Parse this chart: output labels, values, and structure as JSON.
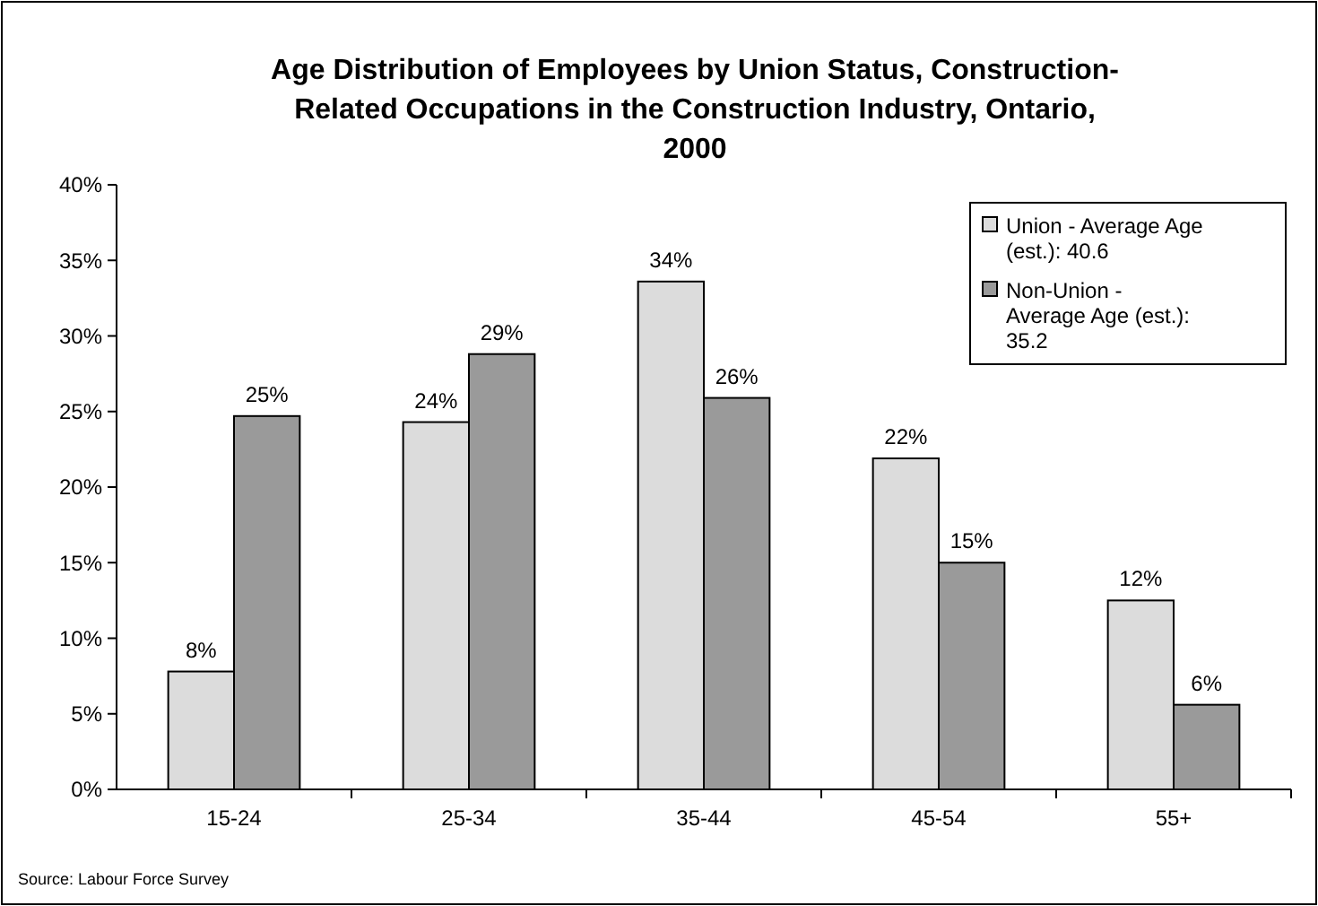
{
  "chart_data": {
    "type": "bar",
    "title": "Age Distribution of Employees by Union Status, Construction-Related Occupations in the Construction Industry, Ontario, 2000",
    "categories": [
      "15-24",
      "25-34",
      "35-44",
      "45-54",
      "55+"
    ],
    "series": [
      {
        "name": "Union - Average Age (est.): 40.6",
        "color": "#dcdcdc",
        "values": [
          7.8,
          24.3,
          33.6,
          21.9,
          12.5
        ],
        "value_labels": [
          "8%",
          "24%",
          "34%",
          "22%",
          "12%"
        ]
      },
      {
        "name": "Non-Union - Average Age (est.): 35.2",
        "color": "#9a9a9a",
        "values": [
          24.7,
          28.8,
          25.9,
          15.0,
          5.6
        ],
        "value_labels": [
          "25%",
          "29%",
          "26%",
          "15%",
          "6%"
        ]
      }
    ],
    "ylim": [
      0,
      40
    ],
    "yticks": [
      {
        "value": 0,
        "label": "0%"
      },
      {
        "value": 5,
        "label": "5%"
      },
      {
        "value": 10,
        "label": "10%"
      },
      {
        "value": 15,
        "label": "15%"
      },
      {
        "value": 20,
        "label": "20%"
      },
      {
        "value": 25,
        "label": "25%"
      },
      {
        "value": 30,
        "label": "30%"
      },
      {
        "value": 35,
        "label": "35%"
      },
      {
        "value": 40,
        "label": "40%"
      }
    ],
    "grid": false,
    "legend": "top right",
    "annotations": [
      "Source: Labour Force Survey"
    ]
  }
}
